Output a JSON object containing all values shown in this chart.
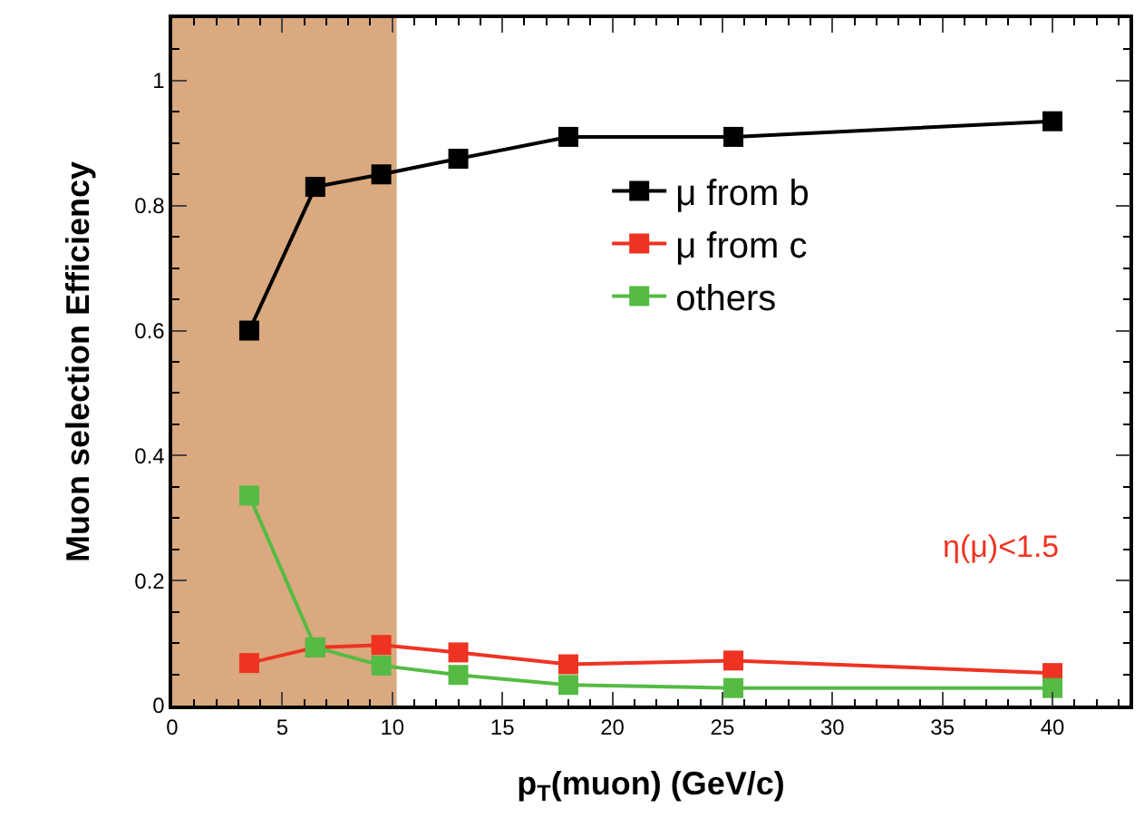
{
  "chart_data": {
    "type": "line",
    "xlabel": "p$_{T}$(muon) (GeV/c)",
    "ylabel": "Muon selection Efficiency",
    "x": [
      3.5,
      6.5,
      9.5,
      13,
      18,
      25.5,
      40
    ],
    "series": [
      {
        "name": "μ from b",
        "color": "#000000",
        "values": [
          0.6,
          0.83,
          0.85,
          0.875,
          0.91,
          0.91,
          0.935
        ]
      },
      {
        "name": "μ from c",
        "color": "#ee3322",
        "values": [
          0.068,
          0.093,
          0.097,
          0.085,
          0.066,
          0.072,
          0.052
        ]
      },
      {
        "name": "others",
        "color": "#55bb44",
        "values": [
          0.336,
          0.093,
          0.064,
          0.049,
          0.033,
          0.028,
          0.028
        ]
      }
    ],
    "xlim": [
      0,
      43.5
    ],
    "ylim": [
      0,
      1.1
    ],
    "xticks": [
      0,
      5,
      10,
      15,
      20,
      25,
      30,
      35,
      40
    ],
    "yticks": [
      0,
      {
        "value": 0.2,
        "label": "0.2"
      },
      {
        "value": 0.4,
        "label": "0.4"
      },
      {
        "value": 0.6,
        "label": "0.6"
      },
      {
        "value": 0.8,
        "label": "0.8"
      },
      1
    ],
    "bands": [
      {
        "axis": "x",
        "from": 0,
        "to": 10.2,
        "color": "#d49a68"
      }
    ],
    "annotations": [
      "η(μ)<1.5"
    ],
    "marker": "square",
    "line_style": "solid",
    "legend": "top right"
  }
}
